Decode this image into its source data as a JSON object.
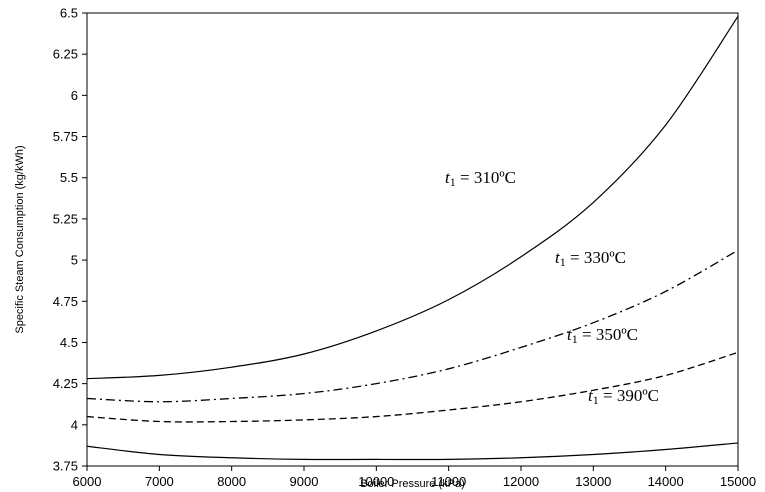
{
  "chart_data": {
    "type": "line",
    "xlabel": "Boiler Pressure (kPa)",
    "ylabel": "Specific Steam Consumption (kg/kWh)",
    "xlim": [
      6000,
      15000
    ],
    "ylim": [
      3.75,
      6.5
    ],
    "xticks": [
      "6000",
      "7000",
      "8000",
      "9000",
      "10000",
      "11000",
      "12000",
      "13000",
      "14000",
      "15000"
    ],
    "yticks": [
      "3.75",
      "4",
      "4.25",
      "4.5",
      "4.75",
      "5",
      "5.25",
      "5.5",
      "5.75",
      "6",
      "6.25",
      "6.5"
    ],
    "grid": false,
    "legend": "none",
    "x": [
      6000,
      7000,
      8000,
      9000,
      10000,
      11000,
      12000,
      13000,
      14000,
      15000
    ],
    "series": [
      {
        "label_var": "t",
        "label_sub": "1",
        "label_text": " = 310ºC",
        "style": "solid",
        "values": [
          4.28,
          4.3,
          4.35,
          4.43,
          4.57,
          4.76,
          5.02,
          5.35,
          5.82,
          6.48
        ]
      },
      {
        "label_var": "t",
        "label_sub": "1",
        "label_text": " = 330ºC",
        "style": "dashdot",
        "values": [
          4.16,
          4.14,
          4.16,
          4.19,
          4.25,
          4.34,
          4.47,
          4.62,
          4.81,
          5.06
        ]
      },
      {
        "label_var": "t",
        "label_sub": "1",
        "label_text": " = 350ºC",
        "style": "dashed",
        "values": [
          4.05,
          4.02,
          4.02,
          4.03,
          4.05,
          4.09,
          4.14,
          4.21,
          4.3,
          4.44
        ]
      },
      {
        "label_var": "t",
        "label_sub": "1",
        "label_text": " = 390ºC",
        "style": "solid",
        "values": [
          3.87,
          3.82,
          3.8,
          3.79,
          3.79,
          3.79,
          3.8,
          3.82,
          3.85,
          3.89
        ]
      }
    ]
  }
}
